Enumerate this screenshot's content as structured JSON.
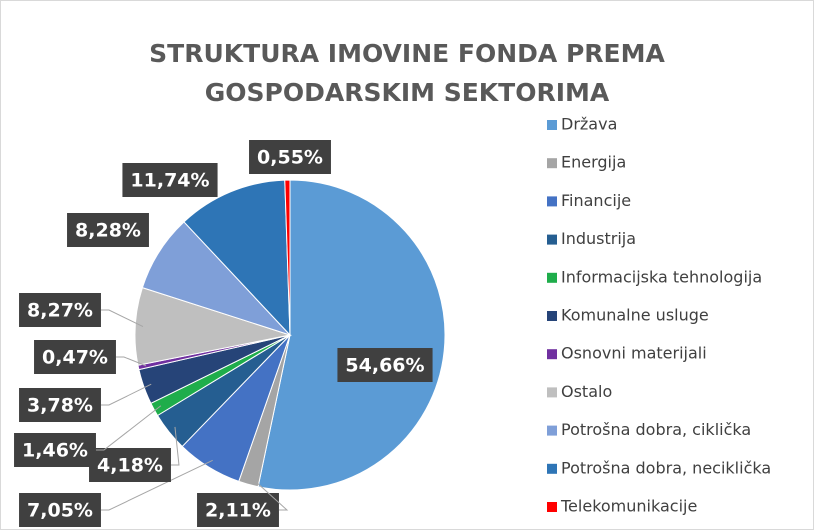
{
  "chart_data": {
    "type": "pie",
    "title": [
      "STRUKTURA IMOVINE FONDA PREMA",
      "GOSPODARSKIM SEKTORIMA"
    ],
    "categories": [
      "Država",
      "Energija",
      "Financije",
      "Industrija",
      "Informacijska tehnologija",
      "Komunalne usluge",
      "Osnovni materijali",
      "Ostalo",
      "Potrošna dobra, ciklička",
      "Potrošna dobra, neciklička",
      "Telekomunikacije"
    ],
    "values": [
      54.66,
      2.11,
      7.05,
      4.18,
      1.46,
      3.78,
      0.47,
      8.27,
      8.28,
      11.74,
      0.55
    ],
    "value_labels": [
      "54,66%",
      "2,11%",
      "7,05%",
      "4,18%",
      "1,46%",
      "3,78%",
      "0,47%",
      "8,27%",
      "8,28%",
      "11,74%",
      "0,55%"
    ],
    "colors": [
      "#5b9bd5",
      "#a5a5a5",
      "#4472c4",
      "#255e91",
      "#1fad4b",
      "#264478",
      "#7030a0",
      "#bfbfbf",
      "#7f9fd8",
      "#2e75b6",
      "#ff0000"
    ],
    "legend": "right"
  }
}
